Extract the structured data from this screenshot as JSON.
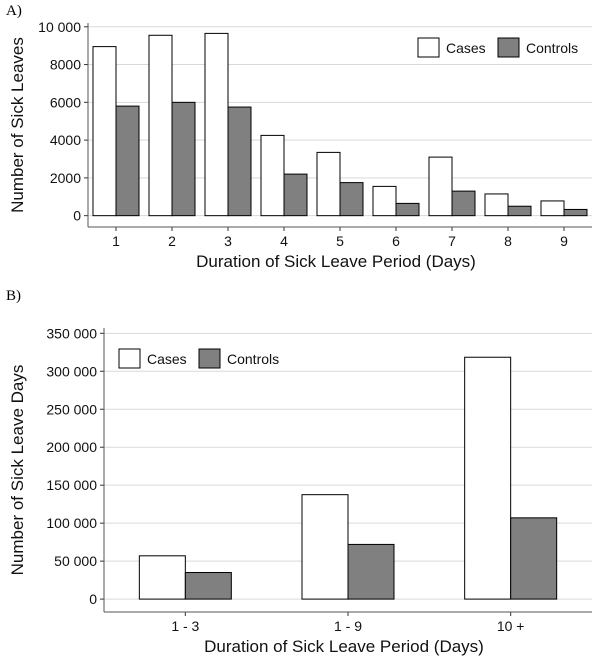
{
  "chart_data": [
    {
      "panel_label": "A)",
      "type": "bar",
      "title": "",
      "categories": [
        "1",
        "2",
        "3",
        "4",
        "5",
        "6",
        "7",
        "8",
        "9"
      ],
      "series": [
        {
          "name": "Cases",
          "color": "#ffffff",
          "values": [
            8950,
            9550,
            9650,
            4250,
            3350,
            1550,
            3100,
            1150,
            780
          ]
        },
        {
          "name": "Controls",
          "color": "#808080",
          "values": [
            5800,
            6000,
            5750,
            2200,
            1750,
            650,
            1300,
            500,
            330
          ]
        }
      ],
      "xlabel": "Duration of Sick Leave Period (Days)",
      "ylabel": "Number of Sick Leaves",
      "ylim": [
        -600,
        10200
      ],
      "yticks": [
        0,
        2000,
        4000,
        6000,
        8000,
        10000
      ],
      "ytick_labels": [
        "0",
        "2000",
        "4000",
        "6000",
        "8000",
        "10 000"
      ],
      "grid": true,
      "legend_position": "top-right"
    },
    {
      "panel_label": "B)",
      "type": "bar",
      "title": "",
      "categories": [
        "1 - 3",
        "1 - 9",
        "10 +"
      ],
      "series": [
        {
          "name": "Cases",
          "color": "#ffffff",
          "values": [
            57000,
            137500,
            318500
          ]
        },
        {
          "name": "Controls",
          "color": "#808080",
          "values": [
            35000,
            72000,
            107000
          ]
        }
      ],
      "xlabel": "Duration of Sick Leave Period (Days)",
      "ylabel": "Number of Sick Leave Days",
      "ylim": [
        -17000,
        357000
      ],
      "yticks": [
        0,
        50000,
        100000,
        150000,
        200000,
        250000,
        300000,
        350000
      ],
      "ytick_labels": [
        "0",
        "50 000",
        "100 000",
        "150 000",
        "200 000",
        "250 000",
        "300 000",
        "350 000"
      ],
      "grid": true,
      "legend_position": "top-left"
    }
  ]
}
